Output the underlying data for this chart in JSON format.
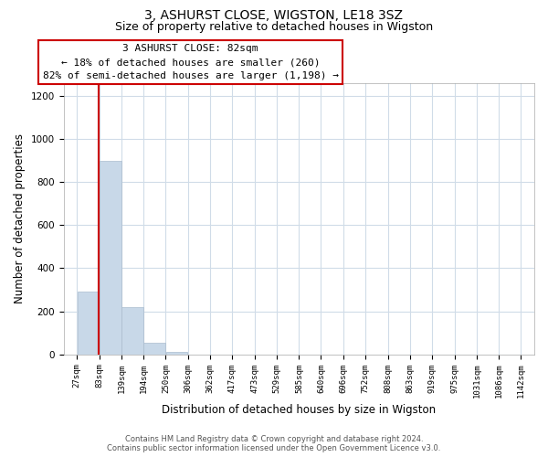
{
  "title": "3, ASHURST CLOSE, WIGSTON, LE18 3SZ",
  "subtitle": "Size of property relative to detached houses in Wigston",
  "xlabel": "Distribution of detached houses by size in Wigston",
  "ylabel": "Number of detached properties",
  "bar_edges": [
    27,
    83,
    139,
    194,
    250,
    306,
    362,
    417,
    473,
    529,
    585,
    640,
    696,
    752,
    808,
    863,
    919,
    975,
    1031,
    1086,
    1142
  ],
  "bar_heights": [
    290,
    900,
    220,
    55,
    10,
    0,
    0,
    0,
    0,
    0,
    0,
    0,
    0,
    0,
    0,
    0,
    0,
    0,
    0,
    0
  ],
  "bar_color": "#c8d8e8",
  "bar_edgecolor": "#aabcce",
  "vline_x": 82,
  "vline_color": "#cc0000",
  "ylim": [
    0,
    1260
  ],
  "yticks": [
    0,
    200,
    400,
    600,
    800,
    1000,
    1200
  ],
  "annotation_title": "3 ASHURST CLOSE: 82sqm",
  "annotation_line1": "← 18% of detached houses are smaller (260)",
  "annotation_line2": "82% of semi-detached houses are larger (1,198) →",
  "tick_labels": [
    "27sqm",
    "83sqm",
    "139sqm",
    "194sqm",
    "250sqm",
    "306sqm",
    "362sqm",
    "417sqm",
    "473sqm",
    "529sqm",
    "585sqm",
    "640sqm",
    "696sqm",
    "752sqm",
    "808sqm",
    "863sqm",
    "919sqm",
    "975sqm",
    "1031sqm",
    "1086sqm",
    "1142sqm"
  ],
  "footer_line1": "Contains HM Land Registry data © Crown copyright and database right 2024.",
  "footer_line2": "Contains public sector information licensed under the Open Government Licence v3.0.",
  "background_color": "#ffffff",
  "grid_color": "#d0dce8",
  "title_fontsize": 10,
  "subtitle_fontsize": 9,
  "axis_label_fontsize": 8.5,
  "tick_fontsize": 6.5,
  "annotation_fontsize": 8,
  "footer_fontsize": 6
}
